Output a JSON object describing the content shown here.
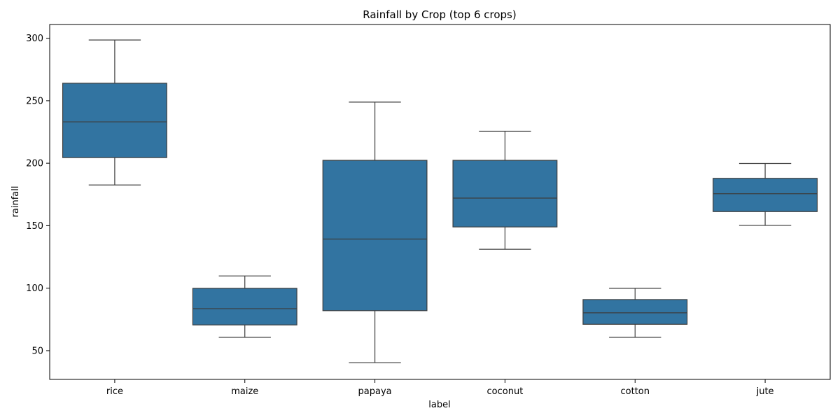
{
  "chart_data": {
    "type": "box",
    "title": "Rainfall by Crop (top 6 crops)",
    "xlabel": "label",
    "ylabel": "rainfall",
    "ylim": [
      27,
      311
    ],
    "yticks": [
      50,
      100,
      150,
      200,
      250,
      300
    ],
    "box_color": "#3274a1",
    "line_color": "#3d3d3d",
    "grid": false,
    "categories": [
      "rice",
      "maize",
      "papaya",
      "coconut",
      "cotton",
      "jute"
    ],
    "boxes": [
      {
        "label": "rice",
        "whisker_low": 182.6,
        "q1": 204.5,
        "median": 233.1,
        "q3": 264.0,
        "whisker_high": 298.6
      },
      {
        "label": "maize",
        "whisker_low": 60.7,
        "q1": 70.6,
        "median": 83.6,
        "q3": 99.9,
        "whisker_high": 109.8
      },
      {
        "label": "papaya",
        "whisker_low": 40.4,
        "q1": 82.0,
        "median": 139.3,
        "q3": 202.3,
        "whisker_high": 248.9
      },
      {
        "label": "coconut",
        "whisker_low": 131.1,
        "q1": 149.0,
        "median": 172.1,
        "q3": 202.3,
        "whisker_high": 225.6
      },
      {
        "label": "cotton",
        "whisker_low": 60.7,
        "q1": 71.1,
        "median": 80.3,
        "q3": 90.9,
        "whisker_high": 99.9
      },
      {
        "label": "jute",
        "whisker_low": 150.2,
        "q1": 161.3,
        "median": 175.6,
        "q3": 187.9,
        "whisker_high": 199.8
      }
    ]
  }
}
